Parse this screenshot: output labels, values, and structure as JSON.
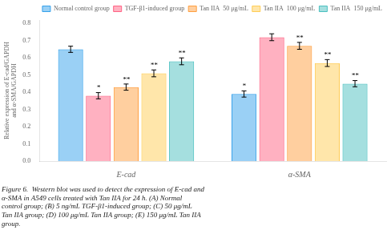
{
  "chart_data": {
    "type": "bar",
    "categories": [
      "E-cad",
      "α-SMA"
    ],
    "y_label": "Relative expression of E-cad/GAPDH\nand α-SMA/GAPDH",
    "subtitle": "Figure 6.  Western blot was used to detect the expression of E-cad and\nα-SMA in A549 cells treated with Tan IIA for 24 h. (A) Normal\ncontrol group; (B) 5 ng/mL TGF-β1-induced group; (C) 50 μg/mL\nTan IIA group; (D) 100 μg/mL Tan IIA group; (E) 150 μg/mL Tan IIA\ngroup.",
    "series": [
      {
        "name": "Normal control group",
        "values": [
          0.65,
          0.39
        ],
        "errors": [
          0.018,
          0.018
        ],
        "annotations": [
          null,
          "*"
        ]
      },
      {
        "name": "TGF-β1-induced group",
        "values": [
          0.38,
          0.72
        ],
        "errors": [
          0.018,
          0.02
        ],
        "annotations": [
          "*",
          null
        ]
      },
      {
        "name": "Tan IIA  50 μg/mL",
        "values": [
          0.43,
          0.67
        ],
        "errors": [
          0.018,
          0.02
        ],
        "annotations": [
          "**",
          "**"
        ]
      },
      {
        "name": "Tan IIA  100 μg/mL",
        "values": [
          0.51,
          0.57
        ],
        "errors": [
          0.02,
          0.02
        ],
        "annotations": [
          "**",
          "**"
        ]
      },
      {
        "name": "Tan IIA  150 μg/mL",
        "values": [
          0.58,
          0.45
        ],
        "errors": [
          0.02,
          0.018
        ],
        "annotations": [
          "**",
          "**"
        ]
      }
    ],
    "ylim": [
      0.0,
      0.82
    ],
    "yticks": [
      {
        "value": 0.0,
        "label": "0.0"
      },
      0.1,
      0.2,
      0.3,
      0.4,
      0.5,
      0.6,
      0.7,
      0.8
    ],
    "grid": false,
    "legend": "upper right"
  }
}
